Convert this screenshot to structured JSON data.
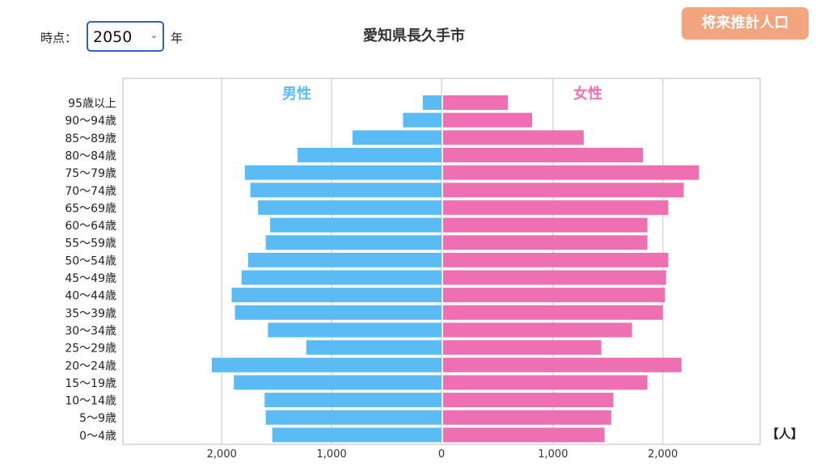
{
  "controls": {
    "year_label": "時点：",
    "year_value": "2050",
    "year_suffix": "年",
    "future_button": "将来推計人口"
  },
  "title": "愛知県長久手市",
  "unit": "【人】",
  "colors": {
    "male": "#5bbcf5",
    "female": "#ee6fb2",
    "button": "#f3a57f",
    "select_border": "#2f62c9"
  },
  "chart_data": {
    "type": "bar",
    "orientation": "horizontal-pyramid",
    "categories": [
      "95歳以上",
      "90〜94歳",
      "85〜89歳",
      "80〜84歳",
      "75〜79歳",
      "70〜74歳",
      "65〜69歳",
      "60〜64歳",
      "55〜59歳",
      "50〜54歳",
      "45〜49歳",
      "40〜44歳",
      "35〜39歳",
      "30〜34歳",
      "25〜29歳",
      "20〜24歳",
      "15〜19歳",
      "10〜14歳",
      "5〜9歳",
      "0〜4歳"
    ],
    "series": [
      {
        "name": "男性",
        "values": [
          170,
          350,
          810,
          1310,
          1790,
          1740,
          1670,
          1560,
          1600,
          1760,
          1820,
          1910,
          1880,
          1580,
          1230,
          2090,
          1890,
          1610,
          1600,
          1540
        ]
      },
      {
        "name": "女性",
        "values": [
          590,
          810,
          1280,
          1820,
          2330,
          2190,
          2050,
          1860,
          1860,
          2050,
          2030,
          2020,
          2000,
          1720,
          1440,
          2170,
          1860,
          1550,
          1530,
          1470
        ]
      }
    ],
    "xticks": [
      "2,000",
      "1,000",
      "0",
      "1,000",
      "2,000"
    ],
    "xlim": [
      -2900,
      2900
    ],
    "grid": true
  }
}
